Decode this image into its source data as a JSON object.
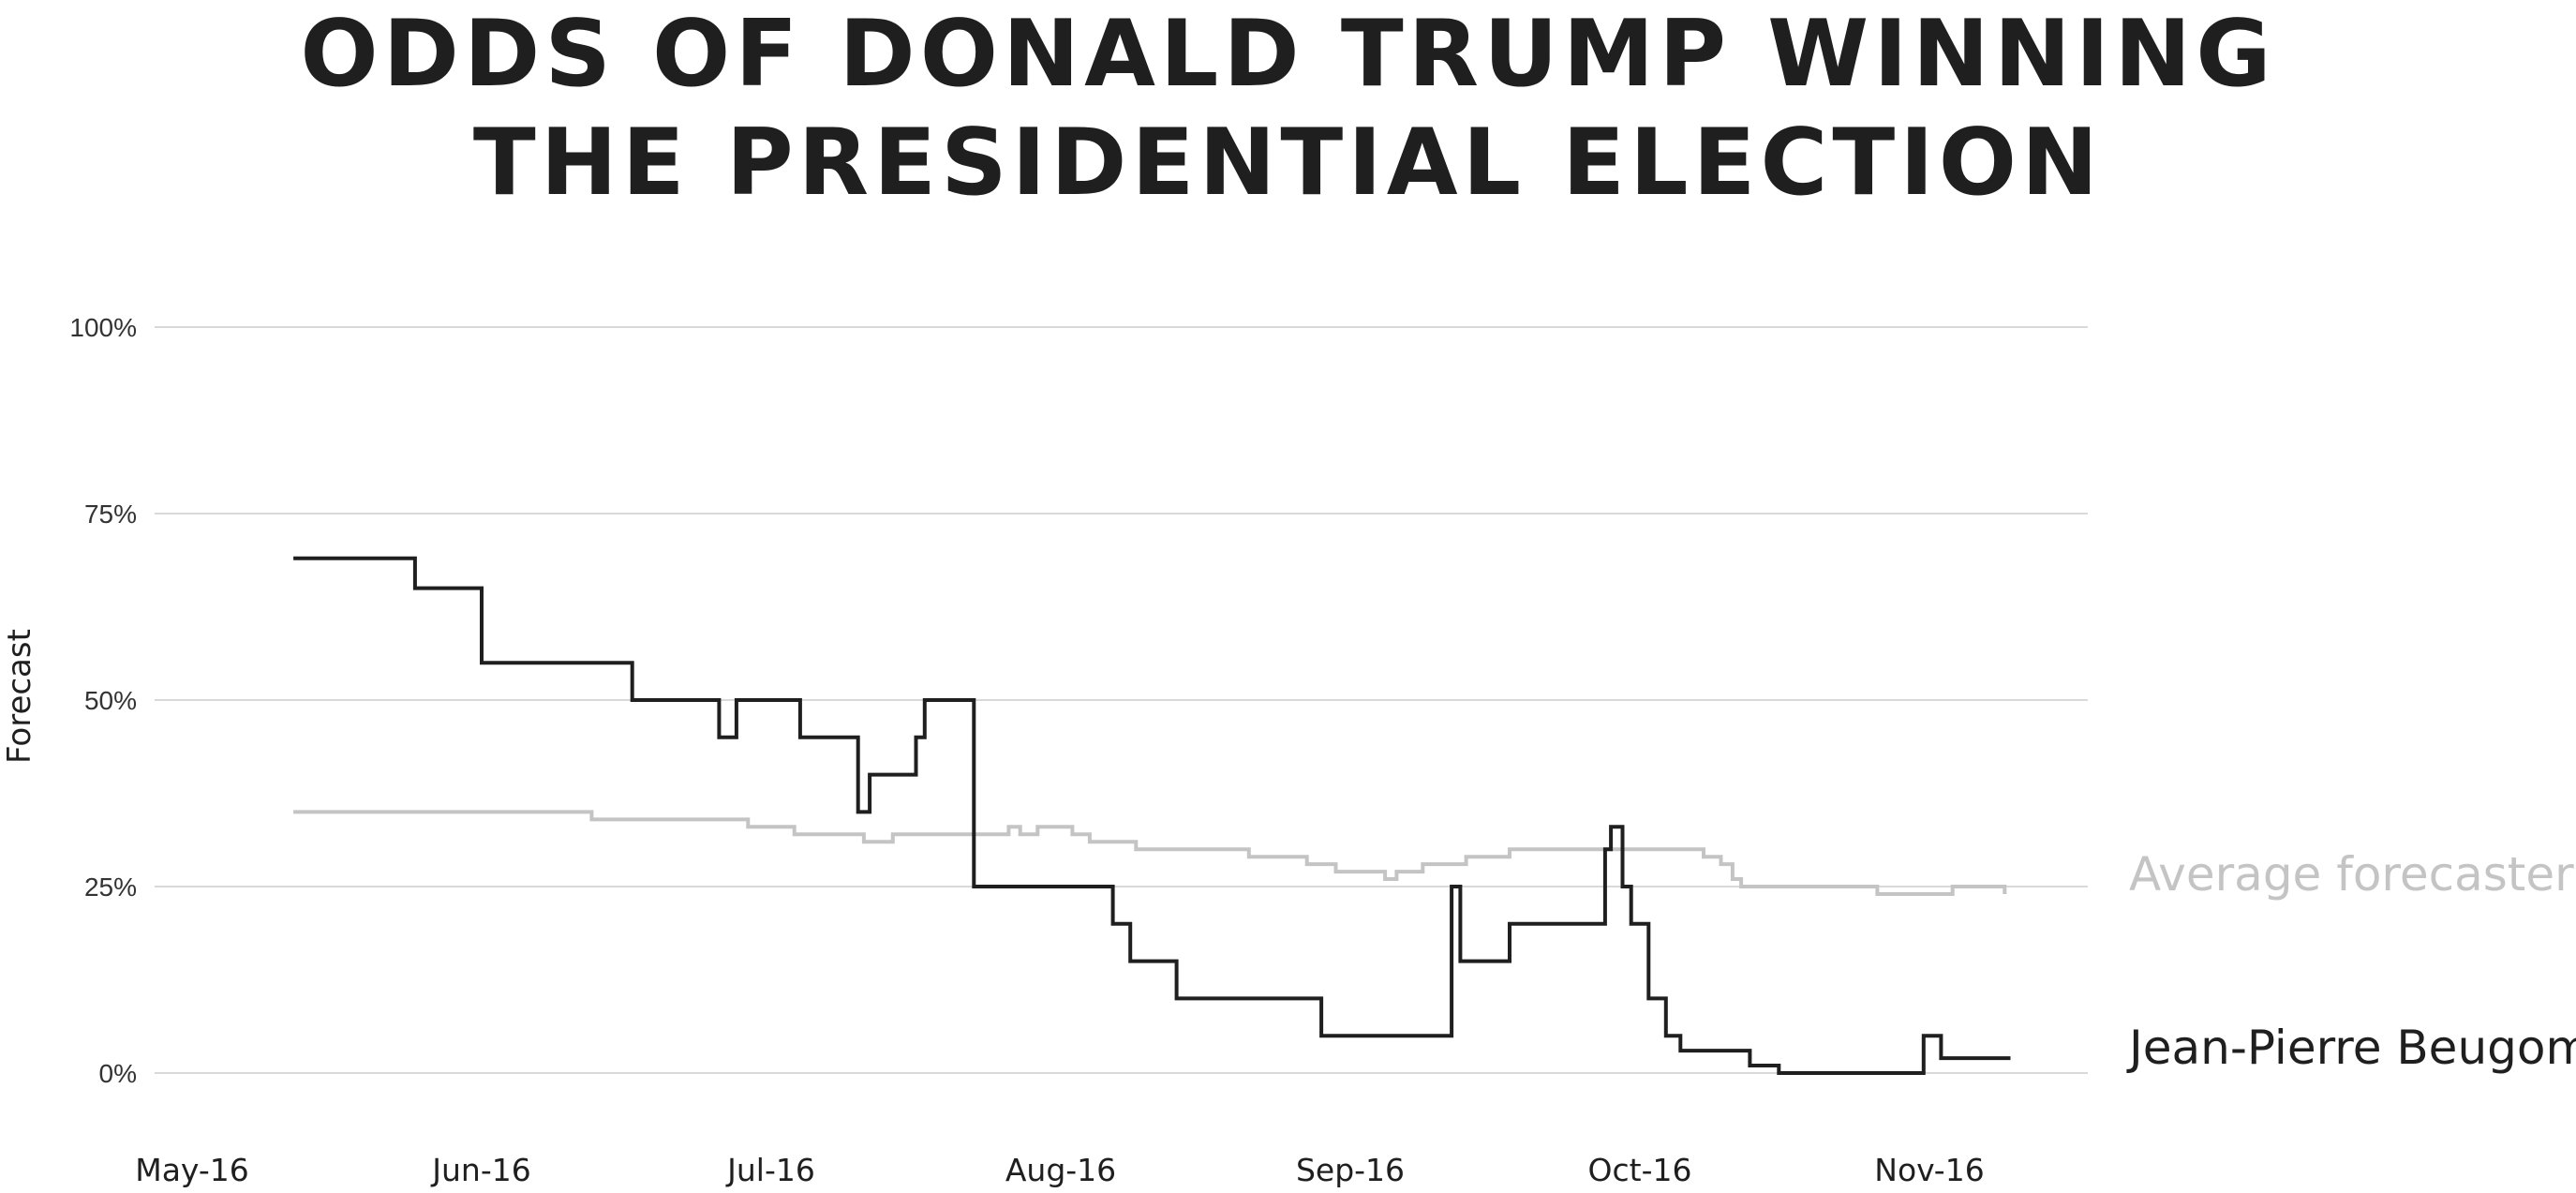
{
  "chart_data": {
    "type": "line",
    "step": true,
    "title": [
      "ODDS OF DONALD TRUMP WINNING",
      "THE PRESIDENTIAL ELECTION"
    ],
    "ylabel": "Forecast",
    "xlabel": "",
    "ylim": [
      0,
      100
    ],
    "xlim": [
      0,
      6.6
    ],
    "y_ticks": [
      {
        "value": 0,
        "label": "0%"
      },
      {
        "value": 25,
        "label": "25%"
      },
      {
        "value": 50,
        "label": "50%"
      },
      {
        "value": 75,
        "label": "75%"
      },
      {
        "value": 100,
        "label": "100%"
      }
    ],
    "x_ticks": [
      {
        "value": 0,
        "label": "May-16"
      },
      {
        "value": 1,
        "label": "Jun-16"
      },
      {
        "value": 2,
        "label": "Jul-16"
      },
      {
        "value": 3,
        "label": "Aug-16"
      },
      {
        "value": 4,
        "label": "Sep-16"
      },
      {
        "value": 5,
        "label": "Oct-16"
      },
      {
        "value": 6,
        "label": "Nov-16"
      }
    ],
    "grid": "horizontal",
    "legend": "direct labels at right end of each series",
    "series": [
      {
        "name": "Average forecaster",
        "color": "#c4c4c4",
        "points": [
          [
            0.35,
            35
          ],
          [
            1.38,
            35
          ],
          [
            1.38,
            34
          ],
          [
            1.92,
            34
          ],
          [
            1.92,
            33
          ],
          [
            2.08,
            33
          ],
          [
            2.08,
            32
          ],
          [
            2.32,
            32
          ],
          [
            2.32,
            31
          ],
          [
            2.42,
            31
          ],
          [
            2.42,
            32
          ],
          [
            2.82,
            32
          ],
          [
            2.82,
            33
          ],
          [
            2.86,
            33
          ],
          [
            2.86,
            32
          ],
          [
            2.92,
            32
          ],
          [
            2.92,
            33
          ],
          [
            3.04,
            33
          ],
          [
            3.04,
            32
          ],
          [
            3.1,
            32
          ],
          [
            3.1,
            31
          ],
          [
            3.26,
            31
          ],
          [
            3.26,
            30
          ],
          [
            3.65,
            30
          ],
          [
            3.65,
            29
          ],
          [
            3.85,
            29
          ],
          [
            3.85,
            28
          ],
          [
            3.95,
            28
          ],
          [
            3.95,
            27
          ],
          [
            4.12,
            27
          ],
          [
            4.12,
            26
          ],
          [
            4.16,
            26
          ],
          [
            4.16,
            27
          ],
          [
            4.25,
            27
          ],
          [
            4.25,
            28
          ],
          [
            4.4,
            28
          ],
          [
            4.4,
            29
          ],
          [
            4.55,
            29
          ],
          [
            4.55,
            30
          ],
          [
            5.22,
            30
          ],
          [
            5.22,
            29
          ],
          [
            5.28,
            29
          ],
          [
            5.28,
            28
          ],
          [
            5.32,
            28
          ],
          [
            5.32,
            26
          ],
          [
            5.35,
            26
          ],
          [
            5.35,
            25
          ],
          [
            5.82,
            25
          ],
          [
            5.82,
            24
          ],
          [
            6.08,
            24
          ],
          [
            6.08,
            25
          ],
          [
            6.26,
            25
          ],
          [
            6.26,
            24
          ]
        ]
      },
      {
        "name": "Jean-Pierre Beugoms",
        "color": "#1f1f1f",
        "points": [
          [
            0.35,
            69
          ],
          [
            0.77,
            69
          ],
          [
            0.77,
            65
          ],
          [
            1.0,
            65
          ],
          [
            1.0,
            55
          ],
          [
            1.52,
            55
          ],
          [
            1.52,
            50
          ],
          [
            1.82,
            50
          ],
          [
            1.82,
            45
          ],
          [
            1.88,
            45
          ],
          [
            1.88,
            50
          ],
          [
            2.1,
            50
          ],
          [
            2.1,
            45
          ],
          [
            2.3,
            45
          ],
          [
            2.3,
            35
          ],
          [
            2.34,
            35
          ],
          [
            2.34,
            40
          ],
          [
            2.5,
            40
          ],
          [
            2.5,
            45
          ],
          [
            2.53,
            45
          ],
          [
            2.53,
            50
          ],
          [
            2.7,
            50
          ],
          [
            2.7,
            25
          ],
          [
            3.18,
            25
          ],
          [
            3.18,
            20
          ],
          [
            3.24,
            20
          ],
          [
            3.24,
            15
          ],
          [
            3.4,
            15
          ],
          [
            3.4,
            10
          ],
          [
            3.9,
            10
          ],
          [
            3.9,
            5
          ],
          [
            4.35,
            5
          ],
          [
            4.35,
            25
          ],
          [
            4.38,
            25
          ],
          [
            4.38,
            15
          ],
          [
            4.55,
            15
          ],
          [
            4.55,
            20
          ],
          [
            4.88,
            20
          ],
          [
            4.88,
            30
          ],
          [
            4.9,
            30
          ],
          [
            4.9,
            33
          ],
          [
            4.94,
            33
          ],
          [
            4.94,
            25
          ],
          [
            4.97,
            25
          ],
          [
            4.97,
            20
          ],
          [
            5.03,
            20
          ],
          [
            5.03,
            10
          ],
          [
            5.09,
            10
          ],
          [
            5.09,
            5
          ],
          [
            5.14,
            5
          ],
          [
            5.14,
            3
          ],
          [
            5.38,
            3
          ],
          [
            5.38,
            1
          ],
          [
            5.48,
            1
          ],
          [
            5.48,
            0
          ],
          [
            5.98,
            0
          ],
          [
            5.98,
            5
          ],
          [
            6.04,
            5
          ],
          [
            6.04,
            2
          ],
          [
            6.28,
            2
          ]
        ]
      }
    ]
  },
  "colors": {
    "gridline": "#d9d9d9",
    "text": "#1f1f1f"
  }
}
